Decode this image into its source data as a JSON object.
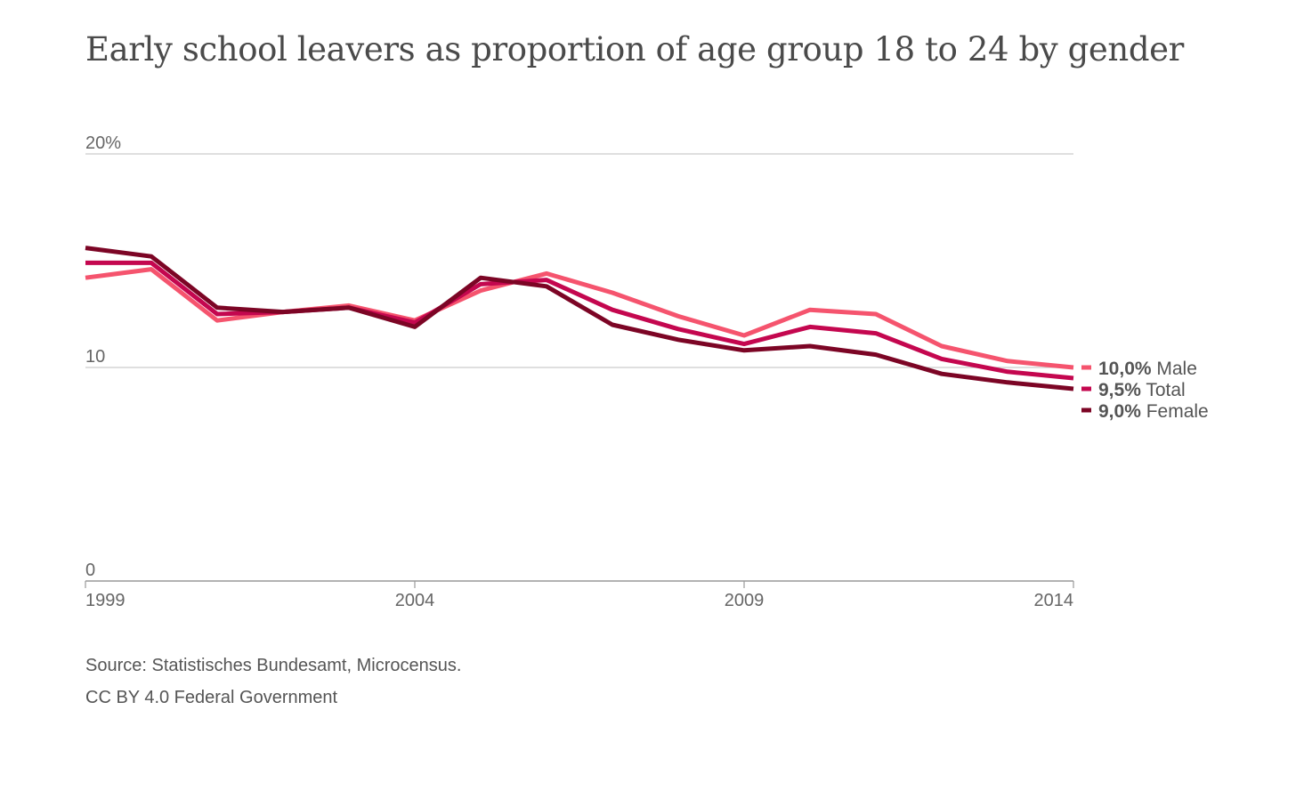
{
  "chart_data": {
    "type": "line",
    "title": "Early school leavers as proportion of age group 18 to 24 by gender",
    "x": [
      1999,
      2000,
      2001,
      2002,
      2003,
      2004,
      2005,
      2006,
      2007,
      2008,
      2009,
      2010,
      2011,
      2012,
      2013,
      2014
    ],
    "xtick_labels": [
      "1999",
      "2004",
      "2009",
      "2014"
    ],
    "ytick_labels": [
      "20%",
      "10",
      "0"
    ],
    "ylim": [
      0,
      20
    ],
    "grid": true,
    "series": [
      {
        "name": "Male",
        "end_label": "10,0%",
        "color": "#f5546e",
        "values": [
          14.2,
          14.6,
          12.2,
          12.6,
          12.9,
          12.2,
          13.6,
          14.4,
          13.5,
          12.4,
          11.5,
          12.7,
          12.5,
          11.0,
          10.3,
          10.0
        ]
      },
      {
        "name": "Total",
        "end_label": "9,5%",
        "color": "#c4074f",
        "values": [
          14.9,
          14.9,
          12.5,
          12.6,
          12.8,
          12.1,
          13.9,
          14.1,
          12.7,
          11.8,
          11.1,
          11.9,
          11.6,
          10.4,
          9.8,
          9.5
        ]
      },
      {
        "name": "Female",
        "end_label": "9,0%",
        "color": "#7c0525",
        "values": [
          15.6,
          15.2,
          12.8,
          12.6,
          12.8,
          11.9,
          14.2,
          13.8,
          12.0,
          11.3,
          10.8,
          11.0,
          10.6,
          9.7,
          9.3,
          9.0
        ]
      }
    ]
  },
  "source": {
    "line1": "Source: Statistisches Bundesamt, Microcensus.",
    "line2": "CC BY 4.0 Federal Government"
  }
}
